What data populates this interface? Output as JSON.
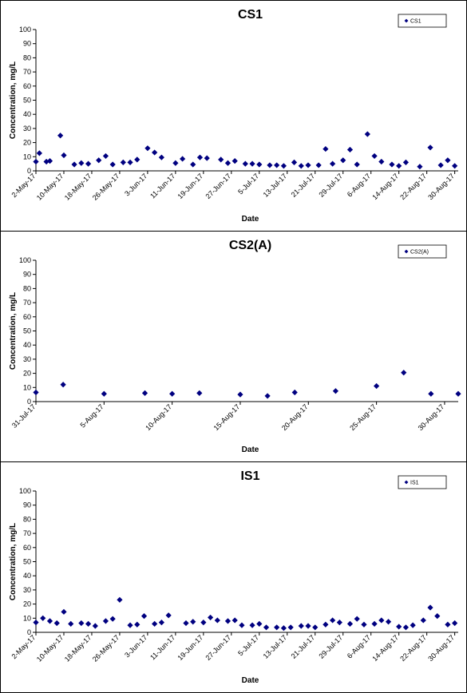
{
  "chart_data": [
    {
      "type": "scatter",
      "title": "CS1",
      "xlabel": "Date",
      "ylabel": "Concentration, mg/L",
      "ylim": [
        0,
        100
      ],
      "yticks": [
        0,
        10,
        20,
        30,
        40,
        50,
        60,
        70,
        80,
        90,
        100
      ],
      "xlim": [
        "2017-05-02",
        "2017-08-31"
      ],
      "xticks": [
        "2-May-17",
        "10-May-17",
        "18-May-17",
        "26-May-17",
        "3-Jun-17",
        "11-Jun-17",
        "19-Jun-17",
        "27-Jun-17",
        "5-Jul-17",
        "13-Jul-17",
        "21-Jul-17",
        "29-Jul-17",
        "6-Aug-17",
        "14-Aug-17",
        "22-Aug-17",
        "30-Aug-17"
      ],
      "grid": false,
      "legend_position": "top-right",
      "marker_color": "#000080",
      "series": [
        {
          "name": "CS1",
          "points": [
            {
              "x": "2017-05-02",
              "y": 6.5
            },
            {
              "x": "2017-05-03",
              "y": 12.5
            },
            {
              "x": "2017-05-05",
              "y": 6.5
            },
            {
              "x": "2017-05-06",
              "y": 7
            },
            {
              "x": "2017-05-09",
              "y": 25
            },
            {
              "x": "2017-05-10",
              "y": 11
            },
            {
              "x": "2017-05-13",
              "y": 4.5
            },
            {
              "x": "2017-05-15",
              "y": 5.5
            },
            {
              "x": "2017-05-17",
              "y": 5
            },
            {
              "x": "2017-05-20",
              "y": 7.5
            },
            {
              "x": "2017-05-22",
              "y": 10.5
            },
            {
              "x": "2017-05-24",
              "y": 4.5
            },
            {
              "x": "2017-05-27",
              "y": 6
            },
            {
              "x": "2017-05-29",
              "y": 6
            },
            {
              "x": "2017-05-31",
              "y": 8
            },
            {
              "x": "2017-06-03",
              "y": 16
            },
            {
              "x": "2017-06-05",
              "y": 13
            },
            {
              "x": "2017-06-07",
              "y": 9.5
            },
            {
              "x": "2017-06-11",
              "y": 5.5
            },
            {
              "x": "2017-06-13",
              "y": 8.5
            },
            {
              "x": "2017-06-16",
              "y": 4.5
            },
            {
              "x": "2017-06-18",
              "y": 9.5
            },
            {
              "x": "2017-06-20",
              "y": 9
            },
            {
              "x": "2017-06-24",
              "y": 8
            },
            {
              "x": "2017-06-26",
              "y": 5.5
            },
            {
              "x": "2017-06-28",
              "y": 7
            },
            {
              "x": "2017-07-01",
              "y": 5
            },
            {
              "x": "2017-07-03",
              "y": 5
            },
            {
              "x": "2017-07-05",
              "y": 4.5
            },
            {
              "x": "2017-07-08",
              "y": 4
            },
            {
              "x": "2017-07-10",
              "y": 4
            },
            {
              "x": "2017-07-12",
              "y": 3.5
            },
            {
              "x": "2017-07-15",
              "y": 6
            },
            {
              "x": "2017-07-17",
              "y": 3.5
            },
            {
              "x": "2017-07-19",
              "y": 4
            },
            {
              "x": "2017-07-22",
              "y": 4
            },
            {
              "x": "2017-07-24",
              "y": 15.5
            },
            {
              "x": "2017-07-26",
              "y": 5
            },
            {
              "x": "2017-07-29",
              "y": 7.5
            },
            {
              "x": "2017-07-31",
              "y": 15
            },
            {
              "x": "2017-08-02",
              "y": 4.5
            },
            {
              "x": "2017-08-05",
              "y": 26
            },
            {
              "x": "2017-08-07",
              "y": 10.5
            },
            {
              "x": "2017-08-09",
              "y": 6.5
            },
            {
              "x": "2017-08-12",
              "y": 4.5
            },
            {
              "x": "2017-08-14",
              "y": 3.5
            },
            {
              "x": "2017-08-16",
              "y": 6
            },
            {
              "x": "2017-08-20",
              "y": 3
            },
            {
              "x": "2017-08-23",
              "y": 16.5
            },
            {
              "x": "2017-08-26",
              "y": 4
            },
            {
              "x": "2017-08-28",
              "y": 7.5
            },
            {
              "x": "2017-08-30",
              "y": 3.5
            }
          ]
        }
      ]
    },
    {
      "type": "scatter",
      "title": "CS2(A)",
      "xlabel": "Date",
      "ylabel": "Concentration, mg/L",
      "ylim": [
        0,
        100
      ],
      "yticks": [
        0,
        10,
        20,
        30,
        40,
        50,
        60,
        70,
        80,
        90,
        100
      ],
      "xlim": [
        "2017-07-31",
        "2017-08-31"
      ],
      "xticks": [
        "31-Jul-17",
        "5-Aug-17",
        "10-Aug-17",
        "15-Aug-17",
        "20-Aug-17",
        "25-Aug-17",
        "30-Aug-17"
      ],
      "grid": false,
      "legend_position": "top-right",
      "marker_color": "#000080",
      "series": [
        {
          "name": "CS2(A)",
          "points": [
            {
              "x": "2017-07-31",
              "y": 6.5
            },
            {
              "x": "2017-08-02",
              "y": 12
            },
            {
              "x": "2017-08-05",
              "y": 5.5
            },
            {
              "x": "2017-08-08",
              "y": 6
            },
            {
              "x": "2017-08-10",
              "y": 5.5
            },
            {
              "x": "2017-08-12",
              "y": 6
            },
            {
              "x": "2017-08-15",
              "y": 5
            },
            {
              "x": "2017-08-17",
              "y": 4
            },
            {
              "x": "2017-08-19",
              "y": 6.5
            },
            {
              "x": "2017-08-22",
              "y": 7.5
            },
            {
              "x": "2017-08-25",
              "y": 11
            },
            {
              "x": "2017-08-27",
              "y": 20.5
            },
            {
              "x": "2017-08-29",
              "y": 5.5
            },
            {
              "x": "2017-08-31",
              "y": 5.5
            }
          ]
        }
      ]
    },
    {
      "type": "scatter",
      "title": "IS1",
      "xlabel": "Date",
      "ylabel": "Concentration, mg/L",
      "ylim": [
        0,
        100
      ],
      "yticks": [
        0,
        10,
        20,
        30,
        40,
        50,
        60,
        70,
        80,
        90,
        100
      ],
      "xlim": [
        "2017-05-02",
        "2017-08-31"
      ],
      "xticks": [
        "2-May-17",
        "10-May-17",
        "18-May-17",
        "26-May-17",
        "3-Jun-17",
        "11-Jun-17",
        "19-Jun-17",
        "27-Jun-17",
        "5-Jul-17",
        "13-Jul-17",
        "21-Jul-17",
        "29-Jul-17",
        "6-Aug-17",
        "14-Aug-17",
        "22-Aug-17",
        "30-Aug-17"
      ],
      "grid": false,
      "legend_position": "top-right",
      "marker_color": "#000080",
      "series": [
        {
          "name": "IS1",
          "points": [
            {
              "x": "2017-05-02",
              "y": 7
            },
            {
              "x": "2017-05-04",
              "y": 10
            },
            {
              "x": "2017-05-06",
              "y": 8
            },
            {
              "x": "2017-05-08",
              "y": 6.5
            },
            {
              "x": "2017-05-10",
              "y": 14.5
            },
            {
              "x": "2017-05-12",
              "y": 6
            },
            {
              "x": "2017-05-15",
              "y": 6.5
            },
            {
              "x": "2017-05-17",
              "y": 6
            },
            {
              "x": "2017-05-19",
              "y": 4.5
            },
            {
              "x": "2017-05-22",
              "y": 8
            },
            {
              "x": "2017-05-24",
              "y": 9.5
            },
            {
              "x": "2017-05-26",
              "y": 23
            },
            {
              "x": "2017-05-29",
              "y": 5
            },
            {
              "x": "2017-05-31",
              "y": 5.5
            },
            {
              "x": "2017-06-02",
              "y": 11.5
            },
            {
              "x": "2017-06-05",
              "y": 6
            },
            {
              "x": "2017-06-07",
              "y": 7
            },
            {
              "x": "2017-06-09",
              "y": 12
            },
            {
              "x": "2017-06-14",
              "y": 6.5
            },
            {
              "x": "2017-06-16",
              "y": 7.5
            },
            {
              "x": "2017-06-19",
              "y": 7
            },
            {
              "x": "2017-06-21",
              "y": 10.5
            },
            {
              "x": "2017-06-23",
              "y": 8.5
            },
            {
              "x": "2017-06-26",
              "y": 8
            },
            {
              "x": "2017-06-28",
              "y": 8.5
            },
            {
              "x": "2017-06-30",
              "y": 5
            },
            {
              "x": "2017-07-03",
              "y": 5
            },
            {
              "x": "2017-07-05",
              "y": 6
            },
            {
              "x": "2017-07-07",
              "y": 3.5
            },
            {
              "x": "2017-07-10",
              "y": 3.5
            },
            {
              "x": "2017-07-12",
              "y": 3
            },
            {
              "x": "2017-07-14",
              "y": 3.5
            },
            {
              "x": "2017-07-17",
              "y": 4.5
            },
            {
              "x": "2017-07-19",
              "y": 4.5
            },
            {
              "x": "2017-07-21",
              "y": 3.5
            },
            {
              "x": "2017-07-24",
              "y": 5.5
            },
            {
              "x": "2017-07-26",
              "y": 8.5
            },
            {
              "x": "2017-07-28",
              "y": 7
            },
            {
              "x": "2017-07-31",
              "y": 6
            },
            {
              "x": "2017-08-02",
              "y": 9.5
            },
            {
              "x": "2017-08-04",
              "y": 5.5
            },
            {
              "x": "2017-08-07",
              "y": 6
            },
            {
              "x": "2017-08-09",
              "y": 8.5
            },
            {
              "x": "2017-08-11",
              "y": 7.5
            },
            {
              "x": "2017-08-14",
              "y": 4
            },
            {
              "x": "2017-08-16",
              "y": 3.5
            },
            {
              "x": "2017-08-18",
              "y": 5
            },
            {
              "x": "2017-08-21",
              "y": 8.5
            },
            {
              "x": "2017-08-23",
              "y": 17.5
            },
            {
              "x": "2017-08-25",
              "y": 11.5
            },
            {
              "x": "2017-08-28",
              "y": 5.5
            },
            {
              "x": "2017-08-30",
              "y": 6.5
            }
          ]
        }
      ]
    }
  ]
}
